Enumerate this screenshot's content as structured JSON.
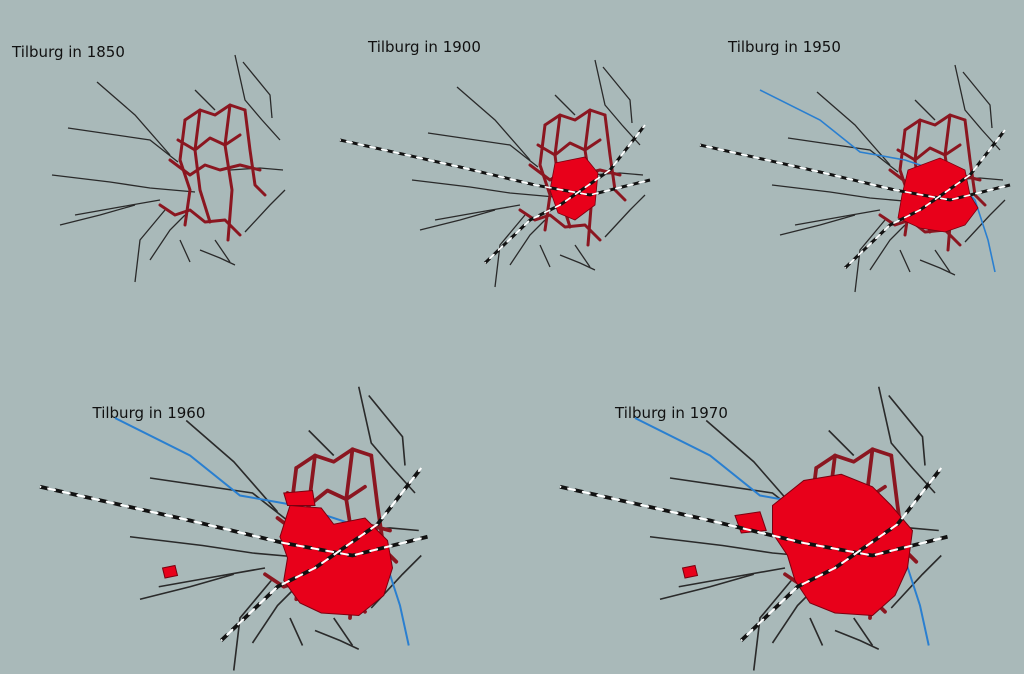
{
  "maps": [
    {
      "title": "Tilburg in 1850"
    },
    {
      "title": "Tilburg in 1900"
    },
    {
      "title": "Tilburg in 1950"
    },
    {
      "title": "Tilburg in 1960"
    },
    {
      "title": "Tilburg in 1970"
    }
  ]
}
